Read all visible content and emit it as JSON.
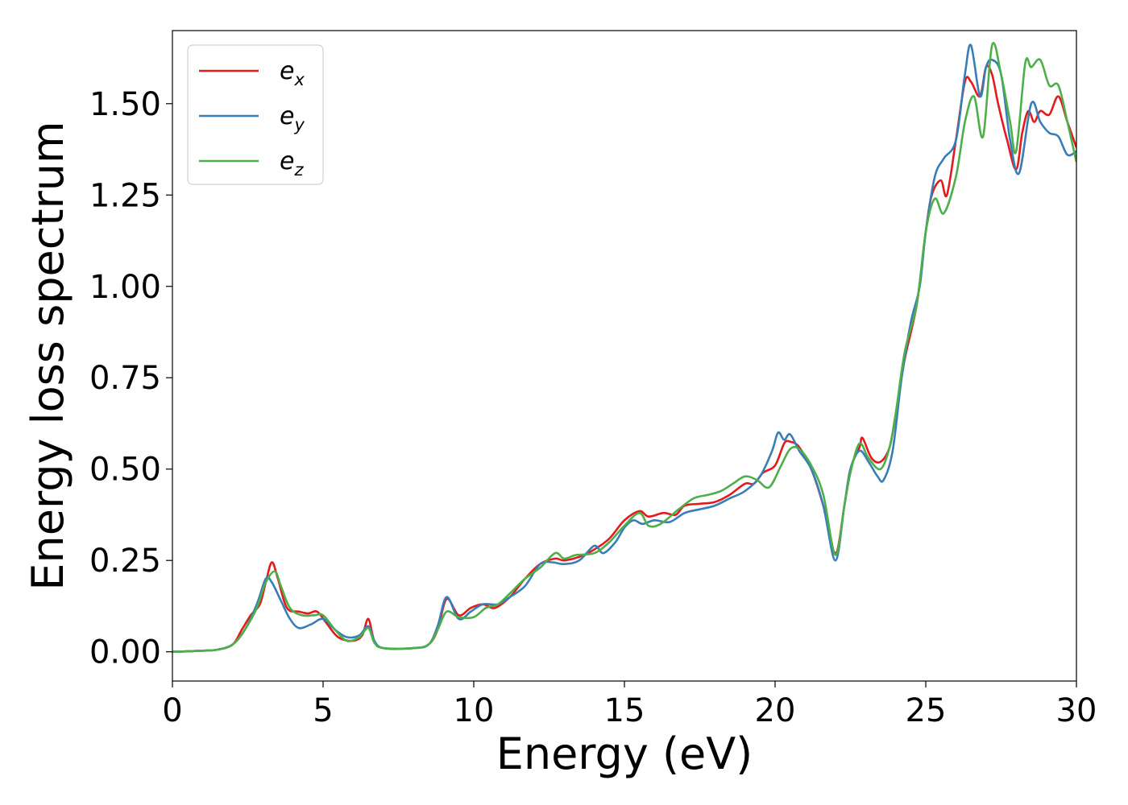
{
  "chart_data": {
    "type": "line",
    "title": "",
    "xlabel": "Energy (eV)",
    "ylabel": "Energy loss spectrum",
    "xlim": [
      0,
      30
    ],
    "ylim": [
      -0.08,
      1.7
    ],
    "xticks": [
      0,
      5,
      10,
      15,
      20,
      25,
      30
    ],
    "xtick_labels": [
      "0",
      "5",
      "10",
      "15",
      "20",
      "25",
      "30"
    ],
    "yticks": [
      0,
      0.25,
      0.5,
      0.75,
      1.0,
      1.25,
      1.5
    ],
    "ytick_labels": [
      "0.00",
      "0.25",
      "0.50",
      "0.75",
      "1.00",
      "1.25",
      "1.50"
    ],
    "grid": false,
    "legend_position": "top-left",
    "series": [
      {
        "name": "e",
        "subscript": "x",
        "color": "#e41a1c",
        "points": [
          [
            0,
            0
          ],
          [
            1,
            0.003
          ],
          [
            1.5,
            0.006
          ],
          [
            2,
            0.02
          ],
          [
            2.3,
            0.06
          ],
          [
            2.6,
            0.1
          ],
          [
            2.9,
            0.13
          ],
          [
            3.1,
            0.19
          ],
          [
            3.3,
            0.245
          ],
          [
            3.5,
            0.2
          ],
          [
            3.8,
            0.12
          ],
          [
            4.2,
            0.11
          ],
          [
            4.5,
            0.105
          ],
          [
            4.8,
            0.11
          ],
          [
            5.1,
            0.08
          ],
          [
            5.5,
            0.04
          ],
          [
            6,
            0.03
          ],
          [
            6.3,
            0.045
          ],
          [
            6.5,
            0.09
          ],
          [
            6.7,
            0.03
          ],
          [
            7,
            0.01
          ],
          [
            8,
            0.01
          ],
          [
            8.5,
            0.02
          ],
          [
            8.8,
            0.06
          ],
          [
            9.1,
            0.145
          ],
          [
            9.5,
            0.1
          ],
          [
            9.9,
            0.12
          ],
          [
            10.3,
            0.13
          ],
          [
            10.7,
            0.12
          ],
          [
            11.2,
            0.15
          ],
          [
            11.7,
            0.2
          ],
          [
            12.2,
            0.24
          ],
          [
            12.7,
            0.255
          ],
          [
            13,
            0.25
          ],
          [
            13.5,
            0.26
          ],
          [
            14,
            0.28
          ],
          [
            14.5,
            0.31
          ],
          [
            15,
            0.36
          ],
          [
            15.5,
            0.385
          ],
          [
            15.8,
            0.37
          ],
          [
            16.3,
            0.38
          ],
          [
            16.7,
            0.375
          ],
          [
            17,
            0.4
          ],
          [
            17.5,
            0.405
          ],
          [
            18,
            0.41
          ],
          [
            18.5,
            0.43
          ],
          [
            19,
            0.46
          ],
          [
            19.3,
            0.46
          ],
          [
            19.6,
            0.49
          ],
          [
            20,
            0.51
          ],
          [
            20.3,
            0.57
          ],
          [
            20.5,
            0.575
          ],
          [
            20.8,
            0.56
          ],
          [
            21.2,
            0.5
          ],
          [
            21.6,
            0.4
          ],
          [
            22,
            0.27
          ],
          [
            22.3,
            0.4
          ],
          [
            22.5,
            0.5
          ],
          [
            22.8,
            0.56
          ],
          [
            22.9,
            0.585
          ],
          [
            23.2,
            0.53
          ],
          [
            23.5,
            0.52
          ],
          [
            23.8,
            0.56
          ],
          [
            24,
            0.65
          ],
          [
            24.3,
            0.8
          ],
          [
            24.7,
            0.95
          ],
          [
            25,
            1.15
          ],
          [
            25.2,
            1.25
          ],
          [
            25.5,
            1.29
          ],
          [
            25.7,
            1.25
          ],
          [
            26,
            1.4
          ],
          [
            26.3,
            1.56
          ],
          [
            26.5,
            1.56
          ],
          [
            26.8,
            1.52
          ],
          [
            27,
            1.6
          ],
          [
            27.2,
            1.58
          ],
          [
            27.4,
            1.5
          ],
          [
            27.7,
            1.4
          ],
          [
            28,
            1.32
          ],
          [
            28.2,
            1.42
          ],
          [
            28.4,
            1.48
          ],
          [
            28.6,
            1.45
          ],
          [
            28.8,
            1.48
          ],
          [
            29.1,
            1.47
          ],
          [
            29.4,
            1.52
          ],
          [
            29.7,
            1.45
          ],
          [
            30,
            1.38
          ]
        ]
      },
      {
        "name": "e",
        "subscript": "y",
        "color": "#377eb8",
        "points": [
          [
            0,
            0
          ],
          [
            1,
            0.003
          ],
          [
            1.5,
            0.006
          ],
          [
            2,
            0.02
          ],
          [
            2.4,
            0.06
          ],
          [
            2.8,
            0.13
          ],
          [
            3.1,
            0.2
          ],
          [
            3.3,
            0.19
          ],
          [
            3.6,
            0.14
          ],
          [
            3.9,
            0.09
          ],
          [
            4.2,
            0.065
          ],
          [
            4.6,
            0.075
          ],
          [
            5,
            0.09
          ],
          [
            5.4,
            0.06
          ],
          [
            5.8,
            0.04
          ],
          [
            6.2,
            0.045
          ],
          [
            6.5,
            0.07
          ],
          [
            6.7,
            0.03
          ],
          [
            7,
            0.01
          ],
          [
            8,
            0.01
          ],
          [
            8.5,
            0.02
          ],
          [
            8.8,
            0.07
          ],
          [
            9.1,
            0.15
          ],
          [
            9.5,
            0.09
          ],
          [
            9.9,
            0.11
          ],
          [
            10.3,
            0.13
          ],
          [
            10.8,
            0.13
          ],
          [
            11.2,
            0.15
          ],
          [
            11.7,
            0.18
          ],
          [
            12.2,
            0.24
          ],
          [
            12.6,
            0.245
          ],
          [
            13,
            0.24
          ],
          [
            13.5,
            0.25
          ],
          [
            14,
            0.29
          ],
          [
            14.3,
            0.27
          ],
          [
            14.7,
            0.3
          ],
          [
            15,
            0.34
          ],
          [
            15.3,
            0.36
          ],
          [
            15.6,
            0.35
          ],
          [
            16,
            0.36
          ],
          [
            16.5,
            0.355
          ],
          [
            17,
            0.38
          ],
          [
            17.5,
            0.39
          ],
          [
            18,
            0.4
          ],
          [
            18.5,
            0.42
          ],
          [
            19,
            0.44
          ],
          [
            19.5,
            0.48
          ],
          [
            19.9,
            0.55
          ],
          [
            20.1,
            0.6
          ],
          [
            20.3,
            0.58
          ],
          [
            20.5,
            0.595
          ],
          [
            20.8,
            0.55
          ],
          [
            21.2,
            0.5
          ],
          [
            21.6,
            0.4
          ],
          [
            22,
            0.25
          ],
          [
            22.3,
            0.4
          ],
          [
            22.5,
            0.5
          ],
          [
            22.8,
            0.55
          ],
          [
            23.1,
            0.52
          ],
          [
            23.4,
            0.48
          ],
          [
            23.6,
            0.47
          ],
          [
            23.9,
            0.55
          ],
          [
            24.2,
            0.75
          ],
          [
            24.5,
            0.9
          ],
          [
            24.8,
            1.0
          ],
          [
            25,
            1.15
          ],
          [
            25.3,
            1.3
          ],
          [
            25.6,
            1.35
          ],
          [
            26,
            1.4
          ],
          [
            26.3,
            1.58
          ],
          [
            26.5,
            1.66
          ],
          [
            26.8,
            1.52
          ],
          [
            27,
            1.6
          ],
          [
            27.2,
            1.62
          ],
          [
            27.5,
            1.58
          ],
          [
            27.8,
            1.4
          ],
          [
            28.1,
            1.31
          ],
          [
            28.5,
            1.5
          ],
          [
            28.8,
            1.45
          ],
          [
            29.1,
            1.42
          ],
          [
            29.4,
            1.41
          ],
          [
            29.7,
            1.36
          ],
          [
            30,
            1.37
          ]
        ]
      },
      {
        "name": "e",
        "subscript": "z",
        "color": "#4daf4a",
        "points": [
          [
            0,
            0
          ],
          [
            1,
            0.003
          ],
          [
            1.5,
            0.006
          ],
          [
            2,
            0.02
          ],
          [
            2.4,
            0.06
          ],
          [
            2.8,
            0.12
          ],
          [
            3.1,
            0.19
          ],
          [
            3.4,
            0.22
          ],
          [
            3.6,
            0.18
          ],
          [
            3.9,
            0.12
          ],
          [
            4.3,
            0.1
          ],
          [
            4.7,
            0.1
          ],
          [
            5,
            0.1
          ],
          [
            5.4,
            0.06
          ],
          [
            5.8,
            0.03
          ],
          [
            6.2,
            0.04
          ],
          [
            6.5,
            0.065
          ],
          [
            6.7,
            0.025
          ],
          [
            7,
            0.01
          ],
          [
            8,
            0.01
          ],
          [
            8.5,
            0.02
          ],
          [
            8.8,
            0.06
          ],
          [
            9.1,
            0.11
          ],
          [
            9.5,
            0.095
          ],
          [
            10,
            0.095
          ],
          [
            10.4,
            0.12
          ],
          [
            10.8,
            0.13
          ],
          [
            11.2,
            0.16
          ],
          [
            11.7,
            0.2
          ],
          [
            12.2,
            0.23
          ],
          [
            12.7,
            0.27
          ],
          [
            13,
            0.255
          ],
          [
            13.4,
            0.265
          ],
          [
            14,
            0.27
          ],
          [
            14.5,
            0.3
          ],
          [
            15,
            0.345
          ],
          [
            15.5,
            0.38
          ],
          [
            15.8,
            0.345
          ],
          [
            16.2,
            0.35
          ],
          [
            16.8,
            0.39
          ],
          [
            17.3,
            0.42
          ],
          [
            17.8,
            0.43
          ],
          [
            18.2,
            0.44
          ],
          [
            18.6,
            0.46
          ],
          [
            19,
            0.48
          ],
          [
            19.4,
            0.47
          ],
          [
            19.8,
            0.45
          ],
          [
            20.2,
            0.51
          ],
          [
            20.5,
            0.555
          ],
          [
            20.8,
            0.555
          ],
          [
            21.2,
            0.51
          ],
          [
            21.6,
            0.43
          ],
          [
            22,
            0.265
          ],
          [
            22.3,
            0.4
          ],
          [
            22.5,
            0.49
          ],
          [
            22.8,
            0.57
          ],
          [
            23.1,
            0.53
          ],
          [
            23.5,
            0.5
          ],
          [
            23.8,
            0.56
          ],
          [
            24,
            0.65
          ],
          [
            24.3,
            0.82
          ],
          [
            24.7,
            0.95
          ],
          [
            25,
            1.15
          ],
          [
            25.3,
            1.24
          ],
          [
            25.6,
            1.2
          ],
          [
            26,
            1.3
          ],
          [
            26.3,
            1.45
          ],
          [
            26.6,
            1.52
          ],
          [
            26.9,
            1.41
          ],
          [
            27.2,
            1.66
          ],
          [
            27.5,
            1.58
          ],
          [
            27.8,
            1.45
          ],
          [
            28,
            1.37
          ],
          [
            28.3,
            1.61
          ],
          [
            28.5,
            1.6
          ],
          [
            28.8,
            1.62
          ],
          [
            29.1,
            1.55
          ],
          [
            29.4,
            1.55
          ],
          [
            29.7,
            1.45
          ],
          [
            30,
            1.34
          ]
        ]
      }
    ]
  }
}
